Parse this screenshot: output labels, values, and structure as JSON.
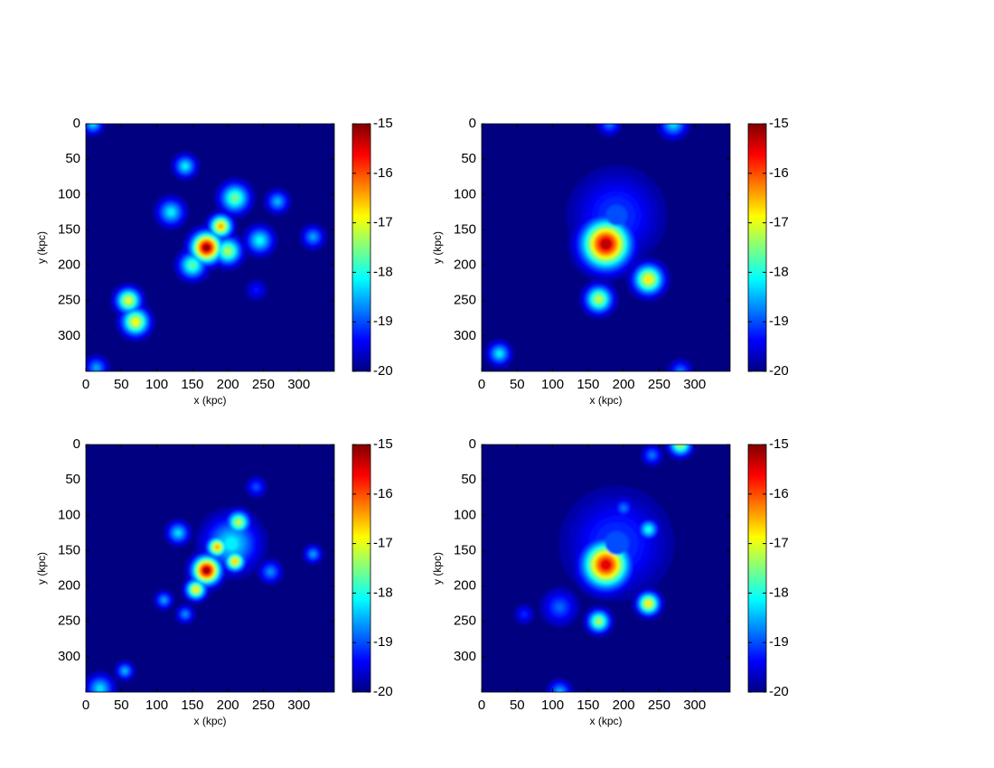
{
  "chart_data": [
    {
      "type": "heatmap",
      "xlabel": "x (kpc)",
      "ylabel": "y (kpc)",
      "xlim": [
        0,
        350
      ],
      "ylim": [
        0,
        350
      ],
      "y_reversed": true,
      "xticks": [
        0,
        50,
        100,
        150,
        200,
        250,
        300
      ],
      "yticks": [
        0,
        50,
        100,
        150,
        200,
        250,
        300
      ],
      "colormap": "jet",
      "clim": [
        -20,
        -15
      ],
      "cticks": [
        -20,
        -19,
        -18,
        -17,
        -16,
        -15
      ],
      "sources": [
        {
          "x": 10,
          "y": 0,
          "level": -18.3,
          "r": 8
        },
        {
          "x": 140,
          "y": 60,
          "level": -18.2,
          "r": 9
        },
        {
          "x": 120,
          "y": 125,
          "level": -18.2,
          "r": 11
        },
        {
          "x": 210,
          "y": 105,
          "level": -17.6,
          "r": 12
        },
        {
          "x": 270,
          "y": 110,
          "level": -18.5,
          "r": 9
        },
        {
          "x": 150,
          "y": 200,
          "level": -17.7,
          "r": 11
        },
        {
          "x": 200,
          "y": 180,
          "level": -17.3,
          "r": 11
        },
        {
          "x": 190,
          "y": 145,
          "level": -16.5,
          "r": 9
        },
        {
          "x": 170,
          "y": 175,
          "level": -15.1,
          "r": 12
        },
        {
          "x": 245,
          "y": 165,
          "level": -18.1,
          "r": 11
        },
        {
          "x": 320,
          "y": 160,
          "level": -18.6,
          "r": 9
        },
        {
          "x": 60,
          "y": 250,
          "level": -17.0,
          "r": 10
        },
        {
          "x": 70,
          "y": 280,
          "level": -16.9,
          "r": 11
        },
        {
          "x": 15,
          "y": 345,
          "level": -18.6,
          "r": 9
        },
        {
          "x": 240,
          "y": 235,
          "level": -19.3,
          "r": 9
        }
      ]
    },
    {
      "type": "heatmap",
      "xlabel": "x (kpc)",
      "ylabel": "y (kpc)",
      "xlim": [
        0,
        350
      ],
      "ylim": [
        0,
        350
      ],
      "y_reversed": true,
      "xticks": [
        0,
        50,
        100,
        150,
        200,
        250,
        300
      ],
      "yticks": [
        0,
        50,
        100,
        150,
        200,
        250,
        300
      ],
      "colormap": "jet",
      "clim": [
        -20,
        -15
      ],
      "cticks": [
        -20,
        -19,
        -18,
        -17,
        -16,
        -15
      ],
      "sources": [
        {
          "x": 190,
          "y": 130,
          "level": -19.0,
          "r": 35
        },
        {
          "x": 180,
          "y": 0,
          "level": -18.8,
          "r": 9
        },
        {
          "x": 270,
          "y": 0,
          "level": -18.3,
          "r": 11
        },
        {
          "x": 175,
          "y": 170,
          "level": -15.3,
          "r": 19
        },
        {
          "x": 235,
          "y": 220,
          "level": -16.8,
          "r": 12
        },
        {
          "x": 165,
          "y": 248,
          "level": -17.2,
          "r": 11
        },
        {
          "x": 25,
          "y": 325,
          "level": -18.2,
          "r": 9
        },
        {
          "x": 280,
          "y": 350,
          "level": -18.8,
          "r": 9
        }
      ]
    },
    {
      "type": "heatmap",
      "xlabel": "x (kpc)",
      "ylabel": "y (kpc)",
      "xlim": [
        0,
        350
      ],
      "ylim": [
        0,
        350
      ],
      "y_reversed": true,
      "xticks": [
        0,
        50,
        100,
        150,
        200,
        250,
        300
      ],
      "yticks": [
        0,
        50,
        100,
        150,
        200,
        250,
        300
      ],
      "colormap": "jet",
      "clim": [
        -20,
        -15
      ],
      "cticks": [
        -20,
        -19,
        -18,
        -17,
        -16,
        -15
      ],
      "sources": [
        {
          "x": 205,
          "y": 140,
          "level": -18.2,
          "r": 22
        },
        {
          "x": 240,
          "y": 60,
          "level": -19.0,
          "r": 8
        },
        {
          "x": 130,
          "y": 125,
          "level": -18.3,
          "r": 9
        },
        {
          "x": 215,
          "y": 110,
          "level": -17.2,
          "r": 9
        },
        {
          "x": 320,
          "y": 155,
          "level": -18.6,
          "r": 7
        },
        {
          "x": 260,
          "y": 180,
          "level": -18.7,
          "r": 9
        },
        {
          "x": 110,
          "y": 220,
          "level": -18.6,
          "r": 7
        },
        {
          "x": 140,
          "y": 240,
          "level": -18.7,
          "r": 7
        },
        {
          "x": 155,
          "y": 205,
          "level": -16.8,
          "r": 8
        },
        {
          "x": 210,
          "y": 165,
          "level": -16.7,
          "r": 8
        },
        {
          "x": 185,
          "y": 145,
          "level": -16.5,
          "r": 8
        },
        {
          "x": 170,
          "y": 178,
          "level": -15.1,
          "r": 11
        },
        {
          "x": 20,
          "y": 345,
          "level": -18.3,
          "r": 11
        },
        {
          "x": 55,
          "y": 320,
          "level": -18.5,
          "r": 7
        }
      ]
    },
    {
      "type": "heatmap",
      "xlabel": "x (kpc)",
      "ylabel": "y (kpc)",
      "xlim": [
        0,
        350
      ],
      "ylim": [
        0,
        350
      ],
      "y_reversed": true,
      "xticks": [
        0,
        50,
        100,
        150,
        200,
        250,
        300
      ],
      "yticks": [
        0,
        50,
        100,
        150,
        200,
        250,
        300
      ],
      "colormap": "jet",
      "clim": [
        -20,
        -15
      ],
      "cticks": [
        -20,
        -19,
        -18,
        -17,
        -16,
        -15
      ],
      "sources": [
        {
          "x": 190,
          "y": 140,
          "level": -19.0,
          "r": 40
        },
        {
          "x": 110,
          "y": 230,
          "level": -18.9,
          "r": 14
        },
        {
          "x": 60,
          "y": 240,
          "level": -19.2,
          "r": 8
        },
        {
          "x": 200,
          "y": 90,
          "level": -18.8,
          "r": 8
        },
        {
          "x": 110,
          "y": 350,
          "level": -18.5,
          "r": 9
        },
        {
          "x": 240,
          "y": 15,
          "level": -18.8,
          "r": 8
        },
        {
          "x": 280,
          "y": 0,
          "level": -17.3,
          "r": 9
        },
        {
          "x": 235,
          "y": 120,
          "level": -18.0,
          "r": 8
        },
        {
          "x": 165,
          "y": 250,
          "level": -17.3,
          "r": 9
        },
        {
          "x": 235,
          "y": 225,
          "level": -16.8,
          "r": 9
        },
        {
          "x": 175,
          "y": 170,
          "level": -15.5,
          "r": 18
        }
      ]
    }
  ]
}
